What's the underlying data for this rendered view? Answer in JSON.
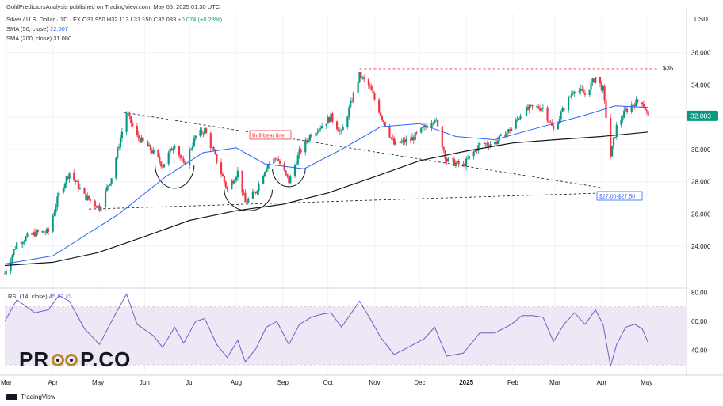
{
  "header": {
    "published_by": "GoldPredictorsAnalysis published on TradingView.com, May 05, 2025 01:30 UTC"
  },
  "legend": {
    "symbol": "Silver / U.S. Dollar · 1D · FX",
    "ohlc": "O31.950 H32.113 L31.950 C32.083",
    "change": "+0.074 (+0.23%)",
    "sma50_label": "SMA (50, close)",
    "sma50_value": "32.607",
    "sma200_label": "SMA (200, close)",
    "sma200_value": "31.080",
    "rsi_label": "RSI (14, close)",
    "rsi_value": "45.32",
    "rsi_extra": "∅"
  },
  "annotations": {
    "target": "$35",
    "bull_bear": "Bull-bear line",
    "support_zone": "$27.00-$27.50",
    "last_price": "32.083"
  },
  "watermark": {
    "left": "PR",
    "right": "P.CO"
  },
  "footer": {
    "brand": "TradingView"
  },
  "colors": {
    "up": "#089981",
    "down": "#f23645",
    "sma50": "#2962ff",
    "sma200": "#131722",
    "rsi": "#7e57c2",
    "rsi_band": "#ede7f6",
    "target_line": "#f23645",
    "last_price": "#089981"
  },
  "chart_data": [
    {
      "type": "candlestick",
      "title": "Silver / U.S. Dollar · 1D · FX",
      "ylabel": "USD",
      "ylim": [
        21.5,
        37.5
      ],
      "y_ticks": [
        24.0,
        26.0,
        28.0,
        30.0,
        32.0,
        34.0,
        36.0
      ],
      "y_tick_labels": [
        "24.000",
        "26.000",
        "28.000",
        "30.000",
        "32.000",
        "34.000",
        "36.000"
      ],
      "x_tick_labels": [
        "Mar",
        "Apr",
        "May",
        "Jun",
        "Jul",
        "Aug",
        "Sep",
        "Oct",
        "Nov",
        "Dec",
        "2025",
        "Feb",
        "Mar",
        "Apr",
        "May"
      ],
      "x_tick_dates": [
        "2024-03-01",
        "2024-04-01",
        "2024-05-01",
        "2024-06-01",
        "2024-07-01",
        "2024-08-01",
        "2024-09-01",
        "2024-10-01",
        "2024-11-01",
        "2024-12-01",
        "2025-01-01",
        "2025-02-01",
        "2025-03-01",
        "2025-04-01",
        "2025-05-01"
      ],
      "xlim": [
        "2024-02-29",
        "2025-05-27"
      ],
      "price_anchors": [
        [
          "2024-02-29",
          22.3
        ],
        [
          "2024-03-08",
          24.2
        ],
        [
          "2024-03-20",
          24.8
        ],
        [
          "2024-03-29",
          24.9
        ],
        [
          "2024-04-05",
          27.2
        ],
        [
          "2024-04-12",
          28.6
        ],
        [
          "2024-04-22",
          27.1
        ],
        [
          "2024-05-02",
          26.4
        ],
        [
          "2024-05-10",
          28.3
        ],
        [
          "2024-05-20",
          32.3
        ],
        [
          "2024-05-27",
          30.8
        ],
        [
          "2024-06-07",
          29.8
        ],
        [
          "2024-06-13",
          29.0
        ],
        [
          "2024-06-21",
          30.4
        ],
        [
          "2024-06-27",
          29.0
        ],
        [
          "2024-07-05",
          30.8
        ],
        [
          "2024-07-11",
          31.2
        ],
        [
          "2024-07-19",
          29.3
        ],
        [
          "2024-07-26",
          27.5
        ],
        [
          "2024-08-02",
          28.6
        ],
        [
          "2024-08-07",
          26.7
        ],
        [
          "2024-08-14",
          27.4
        ],
        [
          "2024-08-21",
          29.0
        ],
        [
          "2024-08-28",
          29.5
        ],
        [
          "2024-09-05",
          28.0
        ],
        [
          "2024-09-12",
          29.8
        ],
        [
          "2024-09-20",
          31.0
        ],
        [
          "2024-09-27",
          31.5
        ],
        [
          "2024-10-03",
          32.0
        ],
        [
          "2024-10-10",
          31.0
        ],
        [
          "2024-10-22",
          34.6
        ],
        [
          "2024-10-29",
          33.8
        ],
        [
          "2024-11-05",
          32.2
        ],
        [
          "2024-11-14",
          30.3
        ],
        [
          "2024-11-25",
          30.6
        ],
        [
          "2024-12-04",
          31.3
        ],
        [
          "2024-12-11",
          32.0
        ],
        [
          "2024-12-19",
          29.3
        ],
        [
          "2024-12-30",
          29.0
        ],
        [
          "2025-01-10",
          30.3
        ],
        [
          "2025-01-20",
          30.4
        ],
        [
          "2025-01-31",
          31.3
        ],
        [
          "2025-02-07",
          32.3
        ],
        [
          "2025-02-14",
          32.6
        ],
        [
          "2025-02-21",
          32.6
        ],
        [
          "2025-02-28",
          31.2
        ],
        [
          "2025-03-07",
          32.6
        ],
        [
          "2025-03-14",
          33.8
        ],
        [
          "2025-03-21",
          33.4
        ],
        [
          "2025-03-28",
          34.5
        ],
        [
          "2025-04-02",
          33.7
        ],
        [
          "2025-04-07",
          29.6
        ],
        [
          "2025-04-11",
          31.4
        ],
        [
          "2025-04-17",
          32.4
        ],
        [
          "2025-04-23",
          32.9
        ],
        [
          "2025-04-28",
          33.0
        ],
        [
          "2025-05-02",
          32.08
        ]
      ],
      "last_close": 32.083,
      "sma50_anchors": [
        [
          "2024-02-29",
          22.9
        ],
        [
          "2024-04-01",
          23.4
        ],
        [
          "2024-05-15",
          26.0
        ],
        [
          "2024-06-15",
          28.3
        ],
        [
          "2024-07-10",
          29.8
        ],
        [
          "2024-08-01",
          30.1
        ],
        [
          "2024-08-20",
          29.1
        ],
        [
          "2024-09-15",
          28.8
        ],
        [
          "2024-10-10",
          30.0
        ],
        [
          "2024-11-05",
          31.4
        ],
        [
          "2024-12-01",
          31.6
        ],
        [
          "2024-12-25",
          30.8
        ],
        [
          "2025-01-20",
          30.6
        ],
        [
          "2025-02-20",
          31.4
        ],
        [
          "2025-03-20",
          32.1
        ],
        [
          "2025-04-10",
          32.7
        ],
        [
          "2025-05-02",
          32.6
        ]
      ],
      "sma200_anchors": [
        [
          "2024-02-29",
          22.8
        ],
        [
          "2024-04-01",
          23.0
        ],
        [
          "2024-05-01",
          23.6
        ],
        [
          "2024-06-01",
          24.6
        ],
        [
          "2024-07-01",
          25.6
        ],
        [
          "2024-08-01",
          26.2
        ],
        [
          "2024-09-01",
          26.6
        ],
        [
          "2024-10-01",
          27.3
        ],
        [
          "2024-11-01",
          28.3
        ],
        [
          "2024-12-01",
          29.3
        ],
        [
          "2025-01-01",
          29.9
        ],
        [
          "2025-02-01",
          30.4
        ],
        [
          "2025-03-01",
          30.6
        ],
        [
          "2025-04-01",
          30.8
        ],
        [
          "2025-05-02",
          31.08
        ]
      ],
      "lines": [
        {
          "name": "target",
          "from": [
            "2024-10-22",
            35.0
          ],
          "to": [
            "2025-05-08",
            35.0
          ],
          "style": "dashed"
        },
        {
          "name": "bull-bear",
          "from": [
            "2024-05-18",
            32.3
          ],
          "to": [
            "2025-04-03",
            27.6
          ],
          "style": "dashed"
        },
        {
          "name": "lower-trend",
          "from": [
            "2024-04-25",
            26.3
          ],
          "to": [
            "2025-04-03",
            27.3
          ],
          "style": "dashed"
        }
      ],
      "arcs": [
        {
          "center": [
            "2024-06-21",
            29.0
          ],
          "rx_days": 13,
          "drop": 1.5
        },
        {
          "center": [
            "2024-08-09",
            27.5
          ],
          "rx_days": 16,
          "drop": 1.3
        },
        {
          "center": [
            "2024-09-05",
            28.8
          ],
          "rx_days": 11,
          "drop": 1.2
        }
      ]
    },
    {
      "type": "line",
      "title": "RSI (14, close)",
      "ylim": [
        25,
        82
      ],
      "y_ticks": [
        40.0,
        60.0,
        80.0
      ],
      "y_tick_labels": [
        "40.00",
        "60.00",
        "80.00"
      ],
      "band": [
        30,
        70
      ],
      "midline": 50,
      "rsi_anchors": [
        [
          "2024-02-29",
          60
        ],
        [
          "2024-03-08",
          75
        ],
        [
          "2024-03-20",
          66
        ],
        [
          "2024-03-29",
          68
        ],
        [
          "2024-04-05",
          78
        ],
        [
          "2024-04-12",
          74
        ],
        [
          "2024-04-22",
          55
        ],
        [
          "2024-05-02",
          44
        ],
        [
          "2024-05-10",
          60
        ],
        [
          "2024-05-20",
          79
        ],
        [
          "2024-05-27",
          58
        ],
        [
          "2024-06-07",
          50
        ],
        [
          "2024-06-13",
          42
        ],
        [
          "2024-06-21",
          56
        ],
        [
          "2024-06-27",
          45
        ],
        [
          "2024-07-05",
          60
        ],
        [
          "2024-07-11",
          62
        ],
        [
          "2024-07-19",
          44
        ],
        [
          "2024-07-26",
          35
        ],
        [
          "2024-08-02",
          47
        ],
        [
          "2024-08-07",
          32
        ],
        [
          "2024-08-14",
          41
        ],
        [
          "2024-08-21",
          56
        ],
        [
          "2024-08-28",
          60
        ],
        [
          "2024-09-05",
          44
        ],
        [
          "2024-09-12",
          58
        ],
        [
          "2024-09-20",
          63
        ],
        [
          "2024-09-27",
          65
        ],
        [
          "2024-10-03",
          66
        ],
        [
          "2024-10-10",
          56
        ],
        [
          "2024-10-22",
          74
        ],
        [
          "2024-10-29",
          62
        ],
        [
          "2024-11-05",
          49
        ],
        [
          "2024-11-14",
          37
        ],
        [
          "2024-11-25",
          43
        ],
        [
          "2024-12-04",
          48
        ],
        [
          "2024-12-11",
          56
        ],
        [
          "2024-12-19",
          36
        ],
        [
          "2024-12-30",
          38
        ],
        [
          "2025-01-10",
          52
        ],
        [
          "2025-01-20",
          52
        ],
        [
          "2025-01-31",
          58
        ],
        [
          "2025-02-07",
          64
        ],
        [
          "2025-02-14",
          64
        ],
        [
          "2025-02-21",
          63
        ],
        [
          "2025-02-28",
          46
        ],
        [
          "2025-03-07",
          58
        ],
        [
          "2025-03-14",
          66
        ],
        [
          "2025-03-21",
          58
        ],
        [
          "2025-03-28",
          68
        ],
        [
          "2025-04-02",
          58
        ],
        [
          "2025-04-07",
          29
        ],
        [
          "2025-04-11",
          44
        ],
        [
          "2025-04-17",
          56
        ],
        [
          "2025-04-23",
          58
        ],
        [
          "2025-04-28",
          55
        ],
        [
          "2025-05-02",
          45.32
        ]
      ]
    }
  ]
}
